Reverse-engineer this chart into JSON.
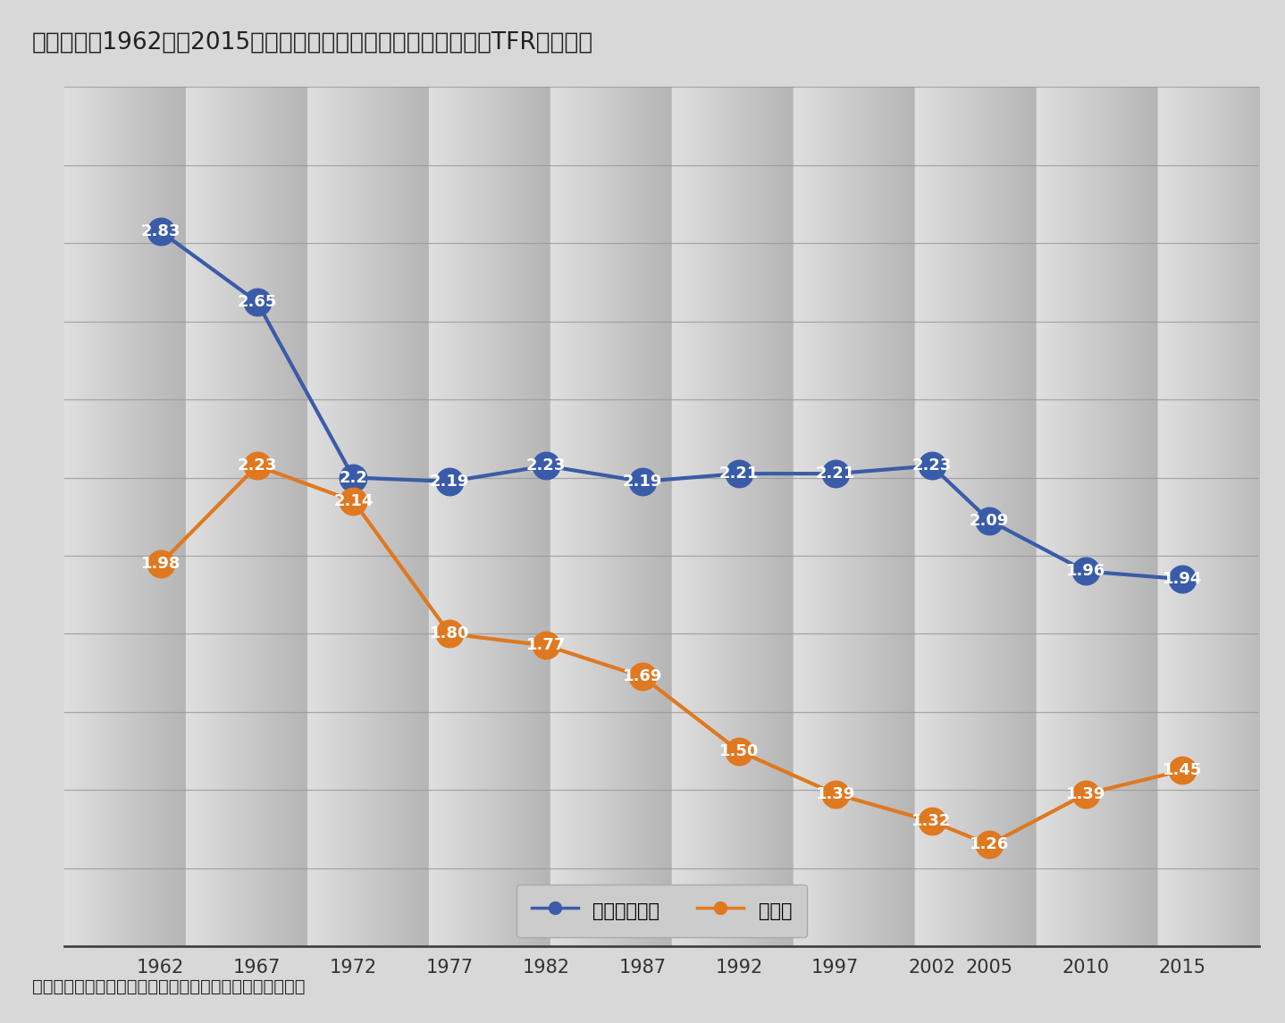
{
  "title": "》図表１》1962年～2015年　完結出生児数と合計特殊出生率（TFR）の推移",
  "title_raw": "【図表１】1962年～2015年　完結出生児数と合計特殊出生率（TFR）の推移",
  "subtitle_source": "資料：国立社会保障・人口問題研究所公表値より筆者作成",
  "years": [
    1962,
    1967,
    1972,
    1977,
    1982,
    1987,
    1992,
    1997,
    2002,
    2005,
    2010,
    2015
  ],
  "kanketsu": [
    2.83,
    2.65,
    2.2,
    2.19,
    2.23,
    2.19,
    2.21,
    2.21,
    2.23,
    2.09,
    1.96,
    1.94
  ],
  "tfr": [
    1.98,
    2.23,
    2.14,
    1.8,
    1.77,
    1.69,
    1.5,
    1.39,
    1.32,
    1.26,
    1.39,
    1.45
  ],
  "kanketsu_color": "#3a5ca8",
  "tfr_color": "#e07820",
  "bg_color": "#d8d8d8",
  "plot_bg_top": "#e8e8e8",
  "plot_bg_bottom": "#b8b8b8",
  "label_kanketsu": "完結出生児数",
  "label_tfr": "ＴＦＲ",
  "ylim_min": 1.0,
  "ylim_max": 3.2,
  "title_fontsize": 19,
  "axis_fontsize": 15,
  "label_fontsize": 14,
  "marker_size": 22,
  "line_width": 3.0,
  "data_label_fontsize": 13,
  "kanketsu_labels": [
    "2.83",
    "2.65",
    "2.2",
    "2.19",
    "2.23",
    "2.19",
    "2.21",
    "2.21",
    "2.23",
    "2.09",
    "1.96",
    "1.94"
  ],
  "tfr_labels": [
    "1.98",
    "2.23",
    "2.14",
    "1.80",
    "1.77",
    "1.69",
    "1.50",
    "1.39",
    "1.32",
    "1.26",
    "1.39",
    "1.45"
  ]
}
